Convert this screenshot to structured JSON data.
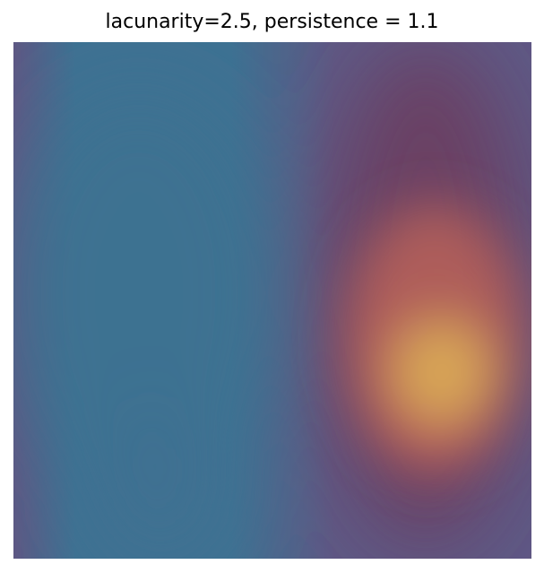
{
  "chart_data": {
    "type": "heatmap",
    "title": "lacunarity=2.5, persistence = 1.1",
    "xlabel": "",
    "ylabel": "",
    "axes_visible": false,
    "grid": false,
    "colormap": [
      "#3e7192",
      "#5e5884",
      "#6b3d60",
      "#b5605a",
      "#d8a656"
    ],
    "background_color": "#5f5986"
  }
}
